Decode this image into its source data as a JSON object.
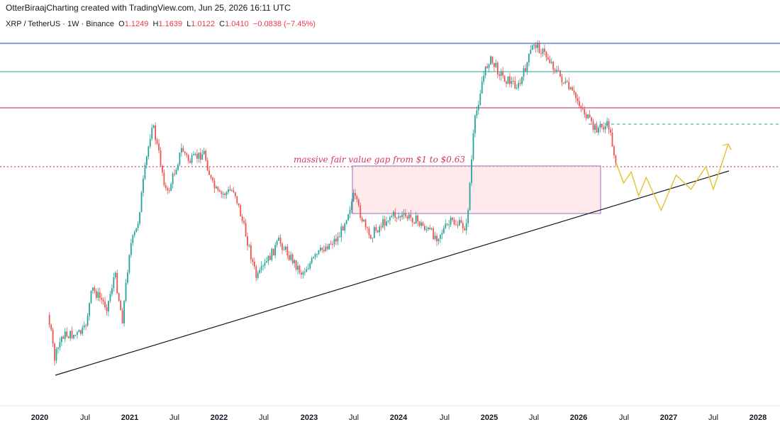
{
  "header": {
    "credit": "OtterBiraajCharting created with TradingView.com, Jun 25, 2026 16:11 UTC",
    "symbol": "XRP / TetherUS · 1W · Binance",
    "open_label": "O",
    "open": "1.1249",
    "high_label": "H",
    "high": "1.1639",
    "low_label": "L",
    "low": "1.0122",
    "close_label": "C",
    "close": "1.0410",
    "change": "−0.0838 (−7.45%)"
  },
  "colors": {
    "up": "#26a69a",
    "down": "#ef5350",
    "blue_level": "#4a7bd0",
    "teal_level": "#26a69a",
    "magenta_level": "#c2185b",
    "fvg_fill": "#fde2e4",
    "fvg_border": "#9c6fbf",
    "trendline": "#131722",
    "projection": "#e6c229"
  },
  "chart_data": {
    "type": "candlestick",
    "timeframe": "1W",
    "x_ticks": [
      "2020",
      "Jul",
      "2021",
      "Jul",
      "2022",
      "Jul",
      "2023",
      "Jul",
      "2024",
      "Jul",
      "2025",
      "Jul",
      "2026",
      "Jul",
      "2027",
      "Jul",
      "2028"
    ],
    "annotation": "massive fair value gap from $1 to $0.63",
    "last_bar": {
      "open": 1.1249,
      "high": 1.1639,
      "low": 1.0122,
      "close": 1.041,
      "change": -0.0838,
      "change_pct": -7.45
    },
    "fair_value_gap": {
      "top": 1.0,
      "bottom": 0.63,
      "start": "2023-07",
      "end": "2026-05"
    },
    "price_path": [
      {
        "t": "2019-12",
        "p": 0.22
      },
      {
        "t": "2020-02",
        "p": 0.25
      },
      {
        "t": "2020-03",
        "p": 0.15
      },
      {
        "t": "2020-04",
        "p": 0.19
      },
      {
        "t": "2020-06",
        "p": 0.19
      },
      {
        "t": "2020-07",
        "p": 0.2
      },
      {
        "t": "2020-08",
        "p": 0.3
      },
      {
        "t": "2020-10",
        "p": 0.25
      },
      {
        "t": "2020-11",
        "p": 0.35
      },
      {
        "t": "2020-12",
        "p": 0.22
      },
      {
        "t": "2021-01",
        "p": 0.45
      },
      {
        "t": "2021-02",
        "p": 0.55
      },
      {
        "t": "2021-03",
        "p": 0.95
      },
      {
        "t": "2021-04",
        "p": 1.55
      },
      {
        "t": "2021-05",
        "p": 1.1
      },
      {
        "t": "2021-06",
        "p": 0.75
      },
      {
        "t": "2021-08",
        "p": 1.2
      },
      {
        "t": "2021-09",
        "p": 1.05
      },
      {
        "t": "2021-11",
        "p": 1.15
      },
      {
        "t": "2021-12",
        "p": 0.85
      },
      {
        "t": "2022-01",
        "p": 0.75
      },
      {
        "t": "2022-03",
        "p": 0.8
      },
      {
        "t": "2022-05",
        "p": 0.45
      },
      {
        "t": "2022-06",
        "p": 0.33
      },
      {
        "t": "2022-09",
        "p": 0.48
      },
      {
        "t": "2022-12",
        "p": 0.35
      },
      {
        "t": "2023-03",
        "p": 0.45
      },
      {
        "t": "2023-05",
        "p": 0.5
      },
      {
        "t": "2023-07",
        "p": 0.75
      },
      {
        "t": "2023-09",
        "p": 0.5
      },
      {
        "t": "2023-12",
        "p": 0.62
      },
      {
        "t": "2024-03",
        "p": 0.6
      },
      {
        "t": "2024-06",
        "p": 0.5
      },
      {
        "t": "2024-08",
        "p": 0.58
      },
      {
        "t": "2024-10",
        "p": 0.55
      },
      {
        "t": "2024-11",
        "p": 1.5
      },
      {
        "t": "2024-12",
        "p": 2.3
      },
      {
        "t": "2025-01",
        "p": 2.9
      },
      {
        "t": "2025-03",
        "p": 2.4
      },
      {
        "t": "2025-05",
        "p": 2.2
      },
      {
        "t": "2025-07",
        "p": 3.4
      },
      {
        "t": "2025-09",
        "p": 2.9
      },
      {
        "t": "2025-11",
        "p": 2.3
      },
      {
        "t": "2026-01",
        "p": 1.9
      },
      {
        "t": "2026-03",
        "p": 1.45
      },
      {
        "t": "2026-05",
        "p": 1.5
      },
      {
        "t": "2026-06",
        "p": 1.04
      }
    ],
    "projection": [
      {
        "t": "2026-06",
        "p": 1.04
      },
      {
        "t": "2026-07",
        "p": 0.85
      },
      {
        "t": "2026-08",
        "p": 0.95
      },
      {
        "t": "2026-09",
        "p": 0.75
      },
      {
        "t": "2026-10",
        "p": 0.9
      },
      {
        "t": "2026-12",
        "p": 0.65
      },
      {
        "t": "2027-02",
        "p": 0.92
      },
      {
        "t": "2027-04",
        "p": 0.8
      },
      {
        "t": "2027-06",
        "p": 1.0
      },
      {
        "t": "2027-07",
        "p": 0.8
      },
      {
        "t": "2027-09",
        "p": 1.25
      }
    ]
  }
}
